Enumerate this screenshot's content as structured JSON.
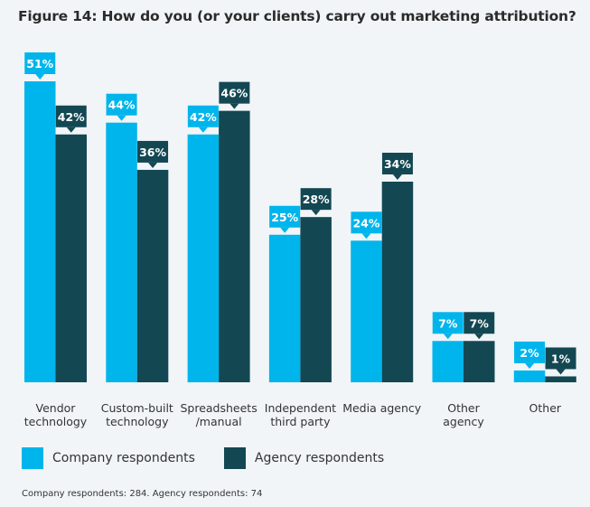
{
  "chart_data": {
    "type": "bar",
    "title": "Figure 14: How do you (or your clients) carry out marketing attribution?",
    "categories": [
      [
        "Vendor",
        "technology"
      ],
      [
        "Custom-built",
        "technology"
      ],
      [
        "Spreadsheets",
        "/manual"
      ],
      [
        "Independent",
        "third party"
      ],
      [
        "Media agency"
      ],
      [
        "Other",
        "agency"
      ],
      [
        "Other"
      ]
    ],
    "series": [
      {
        "name": "Company respondents",
        "color": "#00b5ec",
        "values": [
          51,
          44,
          42,
          25,
          24,
          7,
          2
        ],
        "labels": [
          "51%",
          "44%",
          "42%",
          "25%",
          "24%",
          "7%",
          "2%"
        ]
      },
      {
        "name": "Agency respondents",
        "color": "#134853",
        "values": [
          42,
          36,
          46,
          28,
          34,
          7,
          1
        ],
        "labels": [
          "42%",
          "36%",
          "46%",
          "28%",
          "34%",
          "7%",
          "1%"
        ]
      }
    ],
    "unit": "%",
    "ylim": [
      0,
      51
    ],
    "grid": false,
    "legend": "bottom-left",
    "xlabel": "",
    "ylabel": ""
  },
  "note": "Company respondents: 284. Agency respondents: 74"
}
